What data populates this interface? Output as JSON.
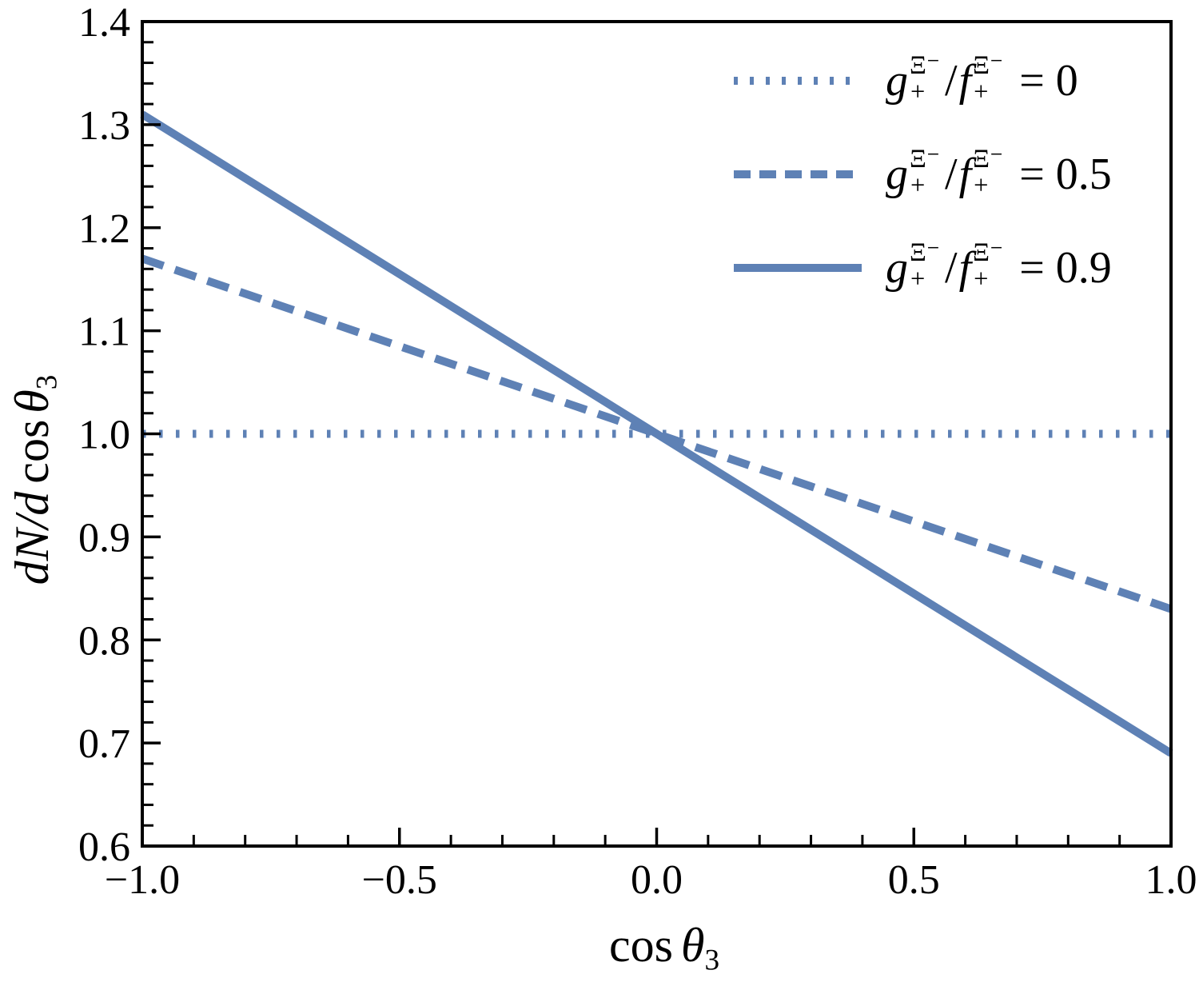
{
  "figure": {
    "background": "#ffffff",
    "frame_color": "#000000",
    "line_color": "#5E81B5"
  },
  "chart_data": {
    "type": "line",
    "title": "",
    "xlabel": {
      "cos": "cos",
      "theta": "θ",
      "sub": "3"
    },
    "ylabel": {
      "prefix": "dN/d",
      "cos": "cos",
      "theta": "θ",
      "sub": "3"
    },
    "x_axis": {
      "min": -1.0,
      "max": 1.0,
      "major_ticks": [
        -1.0,
        -0.5,
        0.0,
        0.5,
        1.0
      ],
      "major_tick_labels": [
        "−1.0",
        "−0.5",
        "0.0",
        "0.5",
        "1.0"
      ],
      "minor_tick_step": 0.1,
      "grid": false
    },
    "y_axis": {
      "min": 0.6,
      "max": 1.4,
      "major_ticks": [
        0.6,
        0.7,
        0.8,
        0.9,
        1.0,
        1.1,
        1.2,
        1.3,
        1.4
      ],
      "major_tick_labels": [
        "0.6",
        "0.7",
        "0.8",
        "0.9",
        "1.0",
        "1.1",
        "1.2",
        "1.3",
        "1.4"
      ],
      "minor_tick_step": 0.02,
      "grid": false
    },
    "series": [
      {
        "name": "g+Ξ−/f+Ξ− = 0",
        "style": "dotted",
        "color": "#5E81B5",
        "width": 10,
        "dash": "4.5 16.5",
        "points": [
          {
            "x": -1.0,
            "y": 1.0
          },
          {
            "x": 1.0,
            "y": 1.0
          }
        ]
      },
      {
        "name": "g+Ξ−/f+Ξ− = 0.5",
        "style": "dashed",
        "color": "#5E81B5",
        "width": 10,
        "dash": "28 15",
        "points": [
          {
            "x": -1.0,
            "y": 1.17
          },
          {
            "x": 1.0,
            "y": 0.83
          }
        ]
      },
      {
        "name": "g+Ξ−/f+Ξ− = 0.9",
        "style": "solid",
        "color": "#5E81B5",
        "width": 10,
        "dash": "",
        "points": [
          {
            "x": -1.0,
            "y": 1.31
          },
          {
            "x": 1.0,
            "y": 0.69
          }
        ]
      }
    ],
    "legend_position": "top-right"
  },
  "legend": {
    "items": [
      {
        "line_style": "dotted",
        "g": "g",
        "g_sup": "Ξ⁻",
        "g_sub": "+",
        "slash": "/",
        "f": "f",
        "f_sup": "Ξ⁻",
        "f_sub": "+",
        "eq": "= 0"
      },
      {
        "line_style": "dashed",
        "g": "g",
        "g_sup": "Ξ⁻",
        "g_sub": "+",
        "slash": "/",
        "f": "f",
        "f_sup": "Ξ⁻",
        "f_sub": "+",
        "eq": "= 0.5"
      },
      {
        "line_style": "solid",
        "g": "g",
        "g_sup": "Ξ⁻",
        "g_sub": "+",
        "slash": "/",
        "f": "f",
        "f_sup": "Ξ⁻",
        "f_sub": "+",
        "eq": "= 0.9"
      }
    ]
  }
}
